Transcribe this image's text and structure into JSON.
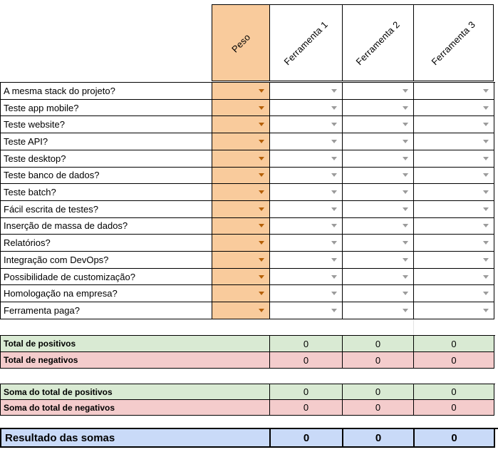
{
  "header": {
    "columns": [
      "Peso",
      "Ferramenta 1",
      "Ferramenta 2",
      "Ferramenta 3"
    ]
  },
  "questions": [
    "A mesma stack do projeto?",
    "Teste app mobile?",
    "Teste website?",
    "Teste API?",
    "Teste desktop?",
    "Teste banco de dados?",
    "Teste batch?",
    "Fácil escrita de testes?",
    "Inserção de massa de dados?",
    "Relatórios?",
    "Integração com DevOps?",
    "Possibilidade de customização?",
    "Homologação na empresa?",
    "Ferramenta paga?"
  ],
  "dropdown": {
    "selected_value": ""
  },
  "totals": {
    "section1": {
      "rows": [
        {
          "label": "Total de positivos",
          "values": [
            "0",
            "0",
            "0"
          ]
        },
        {
          "label": "Total de negativos",
          "values": [
            "0",
            "0",
            "0"
          ]
        }
      ]
    },
    "section2": {
      "rows": [
        {
          "label": "Soma do total de positivos",
          "values": [
            "0",
            "0",
            "0"
          ]
        },
        {
          "label": "Soma do total de negativos",
          "values": [
            "0",
            "0",
            "0"
          ]
        }
      ]
    }
  },
  "result": {
    "label": "Resultado das somas",
    "values": [
      "0",
      "0",
      "0"
    ]
  },
  "colors": {
    "peso_bg": "#f9cb9c",
    "pos_bg": "#d9ead3",
    "neg_bg": "#f4cccc",
    "result_bg": "#c9daf8",
    "arrow_orange": "#b45f06",
    "arrow_gray": "#9b9b9b",
    "border": "#000000"
  }
}
